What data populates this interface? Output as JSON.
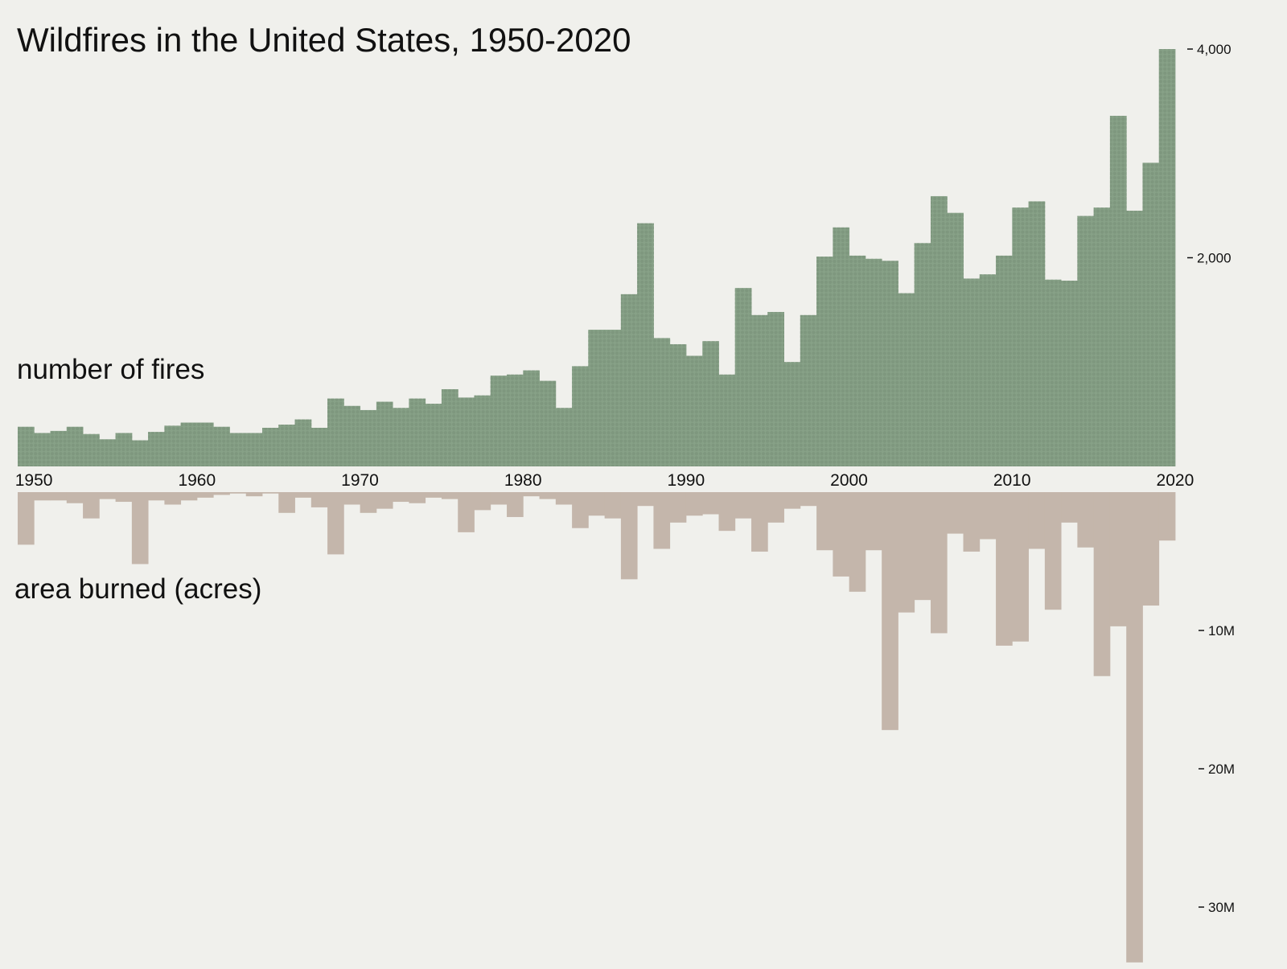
{
  "chart_data": [
    {
      "type": "bar",
      "title": "Wildfires in the United States, 1950-2020",
      "panel_label": "number of fires",
      "x": [
        1950,
        1951,
        1952,
        1953,
        1954,
        1955,
        1956,
        1957,
        1958,
        1959,
        1960,
        1961,
        1962,
        1963,
        1964,
        1965,
        1966,
        1967,
        1968,
        1969,
        1970,
        1971,
        1972,
        1973,
        1974,
        1975,
        1976,
        1977,
        1978,
        1979,
        1980,
        1981,
        1982,
        1983,
        1984,
        1985,
        1986,
        1987,
        1988,
        1989,
        1990,
        1991,
        1992,
        1993,
        1994,
        1995,
        1996,
        1997,
        1998,
        1999,
        2000,
        2001,
        2002,
        2003,
        2004,
        2005,
        2006,
        2007,
        2008,
        2009,
        2010,
        2011,
        2012,
        2013,
        2014,
        2015,
        2016,
        2017,
        2018,
        2019,
        2020
      ],
      "values": [
        380,
        320,
        340,
        380,
        310,
        260,
        320,
        250,
        330,
        390,
        420,
        420,
        380,
        320,
        320,
        370,
        400,
        450,
        370,
        650,
        580,
        540,
        620,
        560,
        650,
        600,
        740,
        660,
        680,
        870,
        880,
        920,
        820,
        560,
        960,
        1310,
        1310,
        1650,
        2330,
        1230,
        1170,
        1060,
        1200,
        880,
        1710,
        1450,
        1480,
        1000,
        1450,
        2010,
        2290,
        2020,
        1990,
        1970,
        1660,
        2140,
        2590,
        2430,
        1800,
        1840,
        2020,
        2480,
        2540,
        1790,
        1780,
        2400,
        2480,
        3360,
        2450,
        2910,
        4000
      ],
      "xticks": [
        "1950",
        "1960",
        "1970",
        "1980",
        "1990",
        "2000",
        "2010",
        "2020"
      ],
      "yticks": [
        "4,000",
        "2,000"
      ],
      "ylim": [
        0,
        4000
      ]
    },
    {
      "type": "bar",
      "panel_label": "area burned (acres)",
      "x": [
        1950,
        1951,
        1952,
        1953,
        1954,
        1955,
        1956,
        1957,
        1958,
        1959,
        1960,
        1961,
        1962,
        1963,
        1964,
        1965,
        1966,
        1967,
        1968,
        1969,
        1970,
        1971,
        1972,
        1973,
        1974,
        1975,
        1976,
        1977,
        1978,
        1979,
        1980,
        1981,
        1982,
        1983,
        1984,
        1985,
        1986,
        1987,
        1988,
        1989,
        1990,
        1991,
        1992,
        1993,
        1994,
        1995,
        1996,
        1997,
        1998,
        1999,
        2000,
        2001,
        2002,
        2003,
        2004,
        2005,
        2006,
        2007,
        2008,
        2009,
        2010,
        2011,
        2012,
        2013,
        2014,
        2015,
        2016,
        2017,
        2018,
        2019,
        2020
      ],
      "values": [
        3.8,
        0.6,
        0.6,
        0.8,
        1.9,
        0.5,
        0.7,
        5.2,
        0.6,
        0.9,
        0.6,
        0.4,
        0.2,
        0.1,
        0.3,
        0.1,
        1.5,
        0.4,
        1.1,
        4.5,
        0.9,
        1.5,
        1.2,
        0.7,
        0.8,
        0.4,
        0.5,
        2.9,
        1.3,
        0.9,
        1.8,
        0.3,
        0.5,
        0.9,
        2.6,
        1.7,
        1.9,
        6.3,
        1.0,
        4.1,
        2.2,
        1.7,
        1.6,
        2.8,
        1.9,
        4.3,
        2.2,
        1.2,
        1.0,
        4.2,
        6.1,
        7.2,
        4.2,
        17.2,
        8.7,
        7.8,
        10.2,
        3.0,
        4.3,
        3.4,
        11.1,
        10.8,
        4.1,
        8.5,
        2.2,
        4.0,
        13.3,
        9.7,
        34.0,
        8.2,
        3.5
      ],
      "yticks": [
        "10M",
        "20M",
        "30M"
      ],
      "ylim": [
        0,
        34
      ]
    }
  ],
  "title": "Wildfires in the United States, 1950-2020",
  "labels": {
    "fires": "number of fires",
    "area": "area burned (acres)"
  },
  "colors": {
    "fires": "#87a187",
    "fires_dot": "#7a917a",
    "area": "#c4b6ab",
    "background": "#f0f0ec"
  }
}
